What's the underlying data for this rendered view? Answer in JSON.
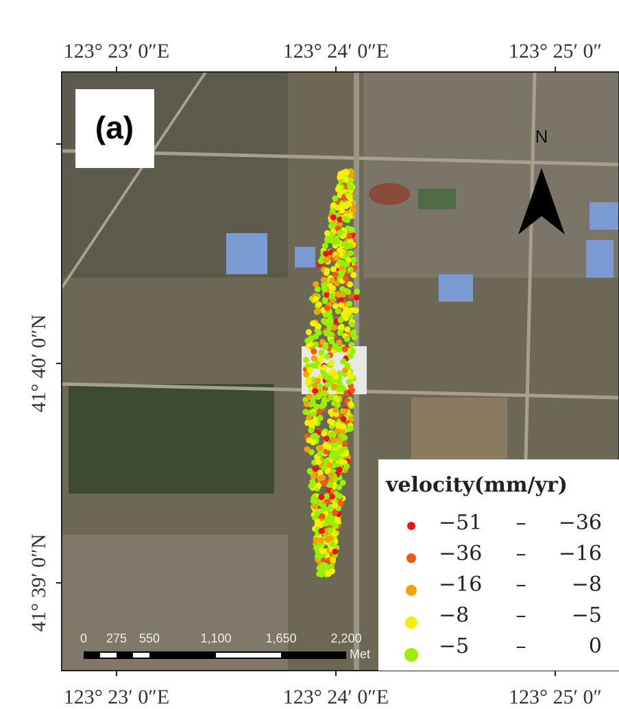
{
  "panel_label": "(a)",
  "top_axis_labels": [
    "123° 23′ 0″E",
    "123° 24′ 0″E",
    "123° 25′ 0″"
  ],
  "bottom_axis_labels": [
    "123° 23′ 0″E",
    "123° 24′ 0″E",
    "123° 25′ 0″"
  ],
  "left_axis_labels": [
    "41° 40′ 0″N",
    "41° 39′ 0″N"
  ],
  "north_arrow": "N",
  "scale_bar": {
    "labels": [
      "0",
      "275",
      "550",
      "1,100",
      "1,650",
      "2,200"
    ],
    "unit": "Met"
  },
  "legend": {
    "title": "velocity(mm/yr)",
    "separator": "–",
    "classes": [
      {
        "from": "−51",
        "to": "−36",
        "color": "#e8141c"
      },
      {
        "from": "−36",
        "to": "−16",
        "color": "#f05a14"
      },
      {
        "from": "−16",
        "to": "−8",
        "color": "#f5a00a"
      },
      {
        "from": "−8",
        "to": "−5",
        "color": "#f5ef00"
      },
      {
        "from": "−5",
        "to": "0",
        "color": "#98f000"
      }
    ]
  }
}
